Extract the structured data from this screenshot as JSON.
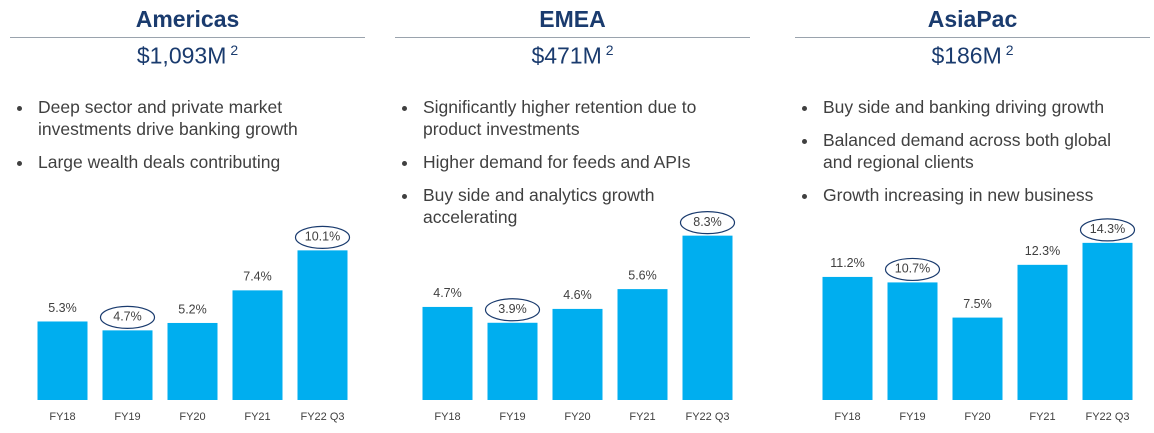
{
  "chart_data": [
    {
      "type": "bar",
      "title": "Americas",
      "subtitle": "$1,093M",
      "footnote": "2",
      "bullets": [
        "Deep sector and private market investments drive banking growth",
        "Large wealth deals contributing"
      ],
      "categories": [
        "FY18",
        "FY19",
        "FY20",
        "FY21",
        "FY22 Q3"
      ],
      "values": [
        5.3,
        4.7,
        5.2,
        7.4,
        10.1
      ],
      "value_labels": [
        "5.3%",
        "4.7%",
        "5.2%",
        "7.4%",
        "10.1%"
      ],
      "circled": [
        1,
        4
      ],
      "color": "#00aeef",
      "ylim": [
        0,
        13.5
      ]
    },
    {
      "type": "bar",
      "title": "EMEA",
      "subtitle": "$471M",
      "footnote": "2",
      "bullets": [
        "Significantly higher retention due to product investments",
        "Higher demand for feeds and APIs",
        "Buy side and analytics growth accelerating"
      ],
      "categories": [
        "FY18",
        "FY19",
        "FY20",
        "FY21",
        "FY22 Q3"
      ],
      "values": [
        4.7,
        3.9,
        4.6,
        5.6,
        8.3
      ],
      "value_labels": [
        "4.7%",
        "3.9%",
        "4.6%",
        "5.6%",
        "8.3%"
      ],
      "circled": [
        1,
        4
      ],
      "color": "#00aeef",
      "ylim": [
        0,
        10.1
      ]
    },
    {
      "type": "bar",
      "title": "AsiaPac",
      "subtitle": "$186M",
      "footnote": "2",
      "bullets": [
        "Buy side and banking driving growth",
        "Balanced demand across both global and regional clients",
        "Growth increasing in new business"
      ],
      "categories": [
        "FY18",
        "FY19",
        "FY20",
        "FY21",
        "FY22 Q3"
      ],
      "values": [
        11.2,
        10.7,
        7.5,
        12.3,
        14.3
      ],
      "value_labels": [
        "11.2%",
        "10.7%",
        "7.5%",
        "12.3%",
        "14.3%"
      ],
      "circled": [
        1,
        4
      ],
      "color": "#00aeef",
      "ylim": [
        0,
        18.2
      ]
    }
  ]
}
